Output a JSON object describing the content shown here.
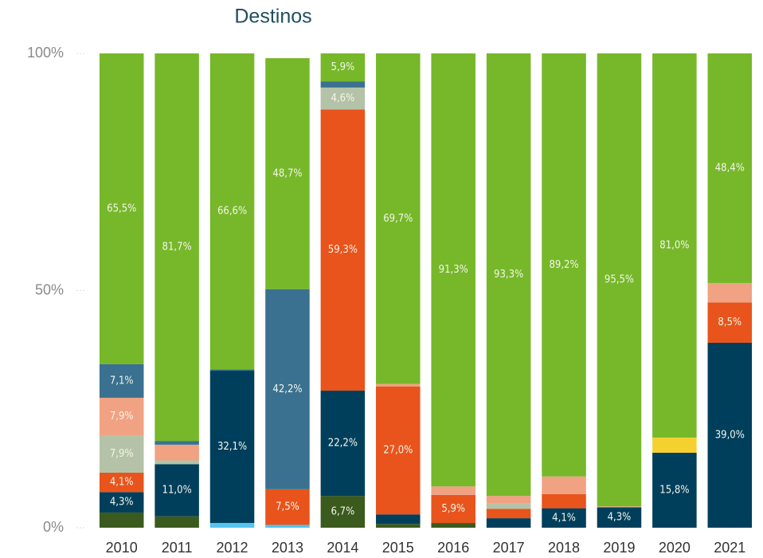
{
  "chart_data": {
    "type": "stacked_bar",
    "title": "Destinos",
    "categories": [
      "2010",
      "2011",
      "2012",
      "2013",
      "2014",
      "2015",
      "2016",
      "2017",
      "2018",
      "2019",
      "2020",
      "2021"
    ],
    "ylim": [
      0,
      100
    ],
    "yticks": [
      {
        "value": 0,
        "label": "0%"
      },
      {
        "value": 50,
        "label": "50%"
      },
      {
        "value": 100,
        "label": "100%"
      }
    ],
    "grid": false,
    "series": [
      {
        "color": "#3b5a1e",
        "values": [
          3.2,
          2.4,
          0,
          0,
          6.7,
          0.8,
          1.0,
          0,
          0,
          0,
          0,
          0
        ],
        "value_labels": [
          null,
          null,
          null,
          null,
          "6,7%",
          null,
          null,
          null,
          null,
          null,
          null,
          null
        ]
      },
      {
        "color": "#55c4ef",
        "values": [
          0,
          0,
          1.0,
          0.6,
          0,
          0,
          0,
          0,
          0,
          0,
          0,
          0
        ],
        "value_labels": [
          null,
          null,
          null,
          null,
          null,
          null,
          null,
          null,
          null,
          null,
          null,
          null
        ]
      },
      {
        "color": "#003f5c",
        "values": [
          4.3,
          11.0,
          32.1,
          0,
          22.2,
          2.0,
          0,
          2.0,
          4.1,
          4.3,
          15.8,
          39.0
        ],
        "value_labels": [
          "4,3%",
          "11,0%",
          "32,1%",
          null,
          "22,2%",
          null,
          null,
          null,
          "4,1%",
          "4,3%",
          "15,8%",
          "39,0%"
        ]
      },
      {
        "color": "#e8541c",
        "values": [
          4.1,
          0,
          0,
          7.5,
          59.3,
          27.0,
          5.9,
          2.0,
          3.0,
          0,
          0,
          8.5
        ],
        "value_labels": [
          "4,1%",
          null,
          null,
          "7,5%",
          "59,3%",
          "27,0%",
          "5,9%",
          null,
          null,
          null,
          null,
          "8,5%"
        ]
      },
      {
        "color": "#b4c3a8",
        "values": [
          7.9,
          0.8,
          0,
          0,
          4.6,
          0,
          0,
          1.2,
          0,
          0,
          0,
          0
        ],
        "value_labels": [
          "7,9%",
          null,
          null,
          null,
          "4,6%",
          null,
          null,
          null,
          null,
          null,
          null,
          null
        ]
      },
      {
        "color": "#f0a283",
        "values": [
          7.9,
          3.3,
          0,
          0,
          0,
          0.5,
          1.8,
          1.5,
          3.7,
          0.2,
          0,
          4.1
        ],
        "value_labels": [
          "7,9%",
          null,
          null,
          null,
          null,
          null,
          null,
          null,
          null,
          null,
          null,
          null
        ]
      },
      {
        "color": "#3a7190",
        "values": [
          7.1,
          0.8,
          0.3,
          42.2,
          1.3,
          0,
          0,
          0,
          0,
          0,
          0,
          0
        ],
        "value_labels": [
          "7,1%",
          null,
          null,
          "42,2%",
          null,
          null,
          null,
          null,
          null,
          null,
          null,
          null
        ]
      },
      {
        "color": "#f5d130",
        "values": [
          0,
          0,
          0,
          0,
          0,
          0,
          0,
          0,
          0,
          0,
          3.2,
          0
        ],
        "value_labels": [
          null,
          null,
          null,
          null,
          null,
          null,
          null,
          null,
          null,
          null,
          null,
          null
        ]
      },
      {
        "color": "#76b82a",
        "values": [
          65.5,
          81.7,
          66.6,
          48.7,
          5.9,
          69.7,
          91.3,
          93.3,
          89.2,
          95.5,
          81.0,
          48.4
        ],
        "value_labels": [
          "65,5%",
          "81,7%",
          "66,6%",
          "48,7%",
          "5,9%",
          "69,7%",
          "91,3%",
          "93,3%",
          "89,2%",
          "95,5%",
          "81,0%",
          "48,4%"
        ]
      }
    ]
  }
}
